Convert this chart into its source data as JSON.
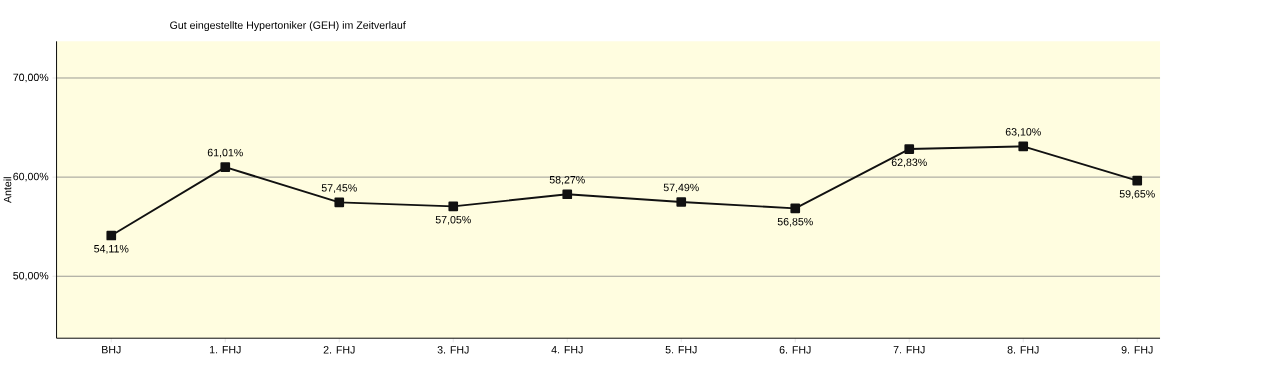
{
  "chart_data": {
    "type": "line",
    "title": "Gut eingestellte Hypertoniker (GEH) im Zeitverlauf",
    "ylabel": "Anteil",
    "categories": [
      "BHJ",
      "1. FHJ",
      "2. FHJ",
      "3. FHJ",
      "4. FHJ",
      "5. FHJ",
      "6. FHJ",
      "7. FHJ",
      "8. FHJ",
      "9. FHJ"
    ],
    "values": [
      54.11,
      61.01,
      57.45,
      57.05,
      58.27,
      57.49,
      56.85,
      62.83,
      63.1,
      59.65
    ],
    "value_labels": [
      "54,11%",
      "61,01%",
      "57,45%",
      "57,05%",
      "58,27%",
      "57,49%",
      "56,85%",
      "62,83%",
      "63,10%",
      "59,65%"
    ],
    "color": "#111111",
    "marker": "square",
    "line_style": "solid",
    "ylim": [
      43.75,
      73.7
    ],
    "yticks": [
      {
        "value": 50,
        "label": "50,00%"
      },
      {
        "value": 60,
        "label": "60,00%"
      },
      {
        "value": 70,
        "label": "70,00%"
      }
    ],
    "grid": "y"
  }
}
